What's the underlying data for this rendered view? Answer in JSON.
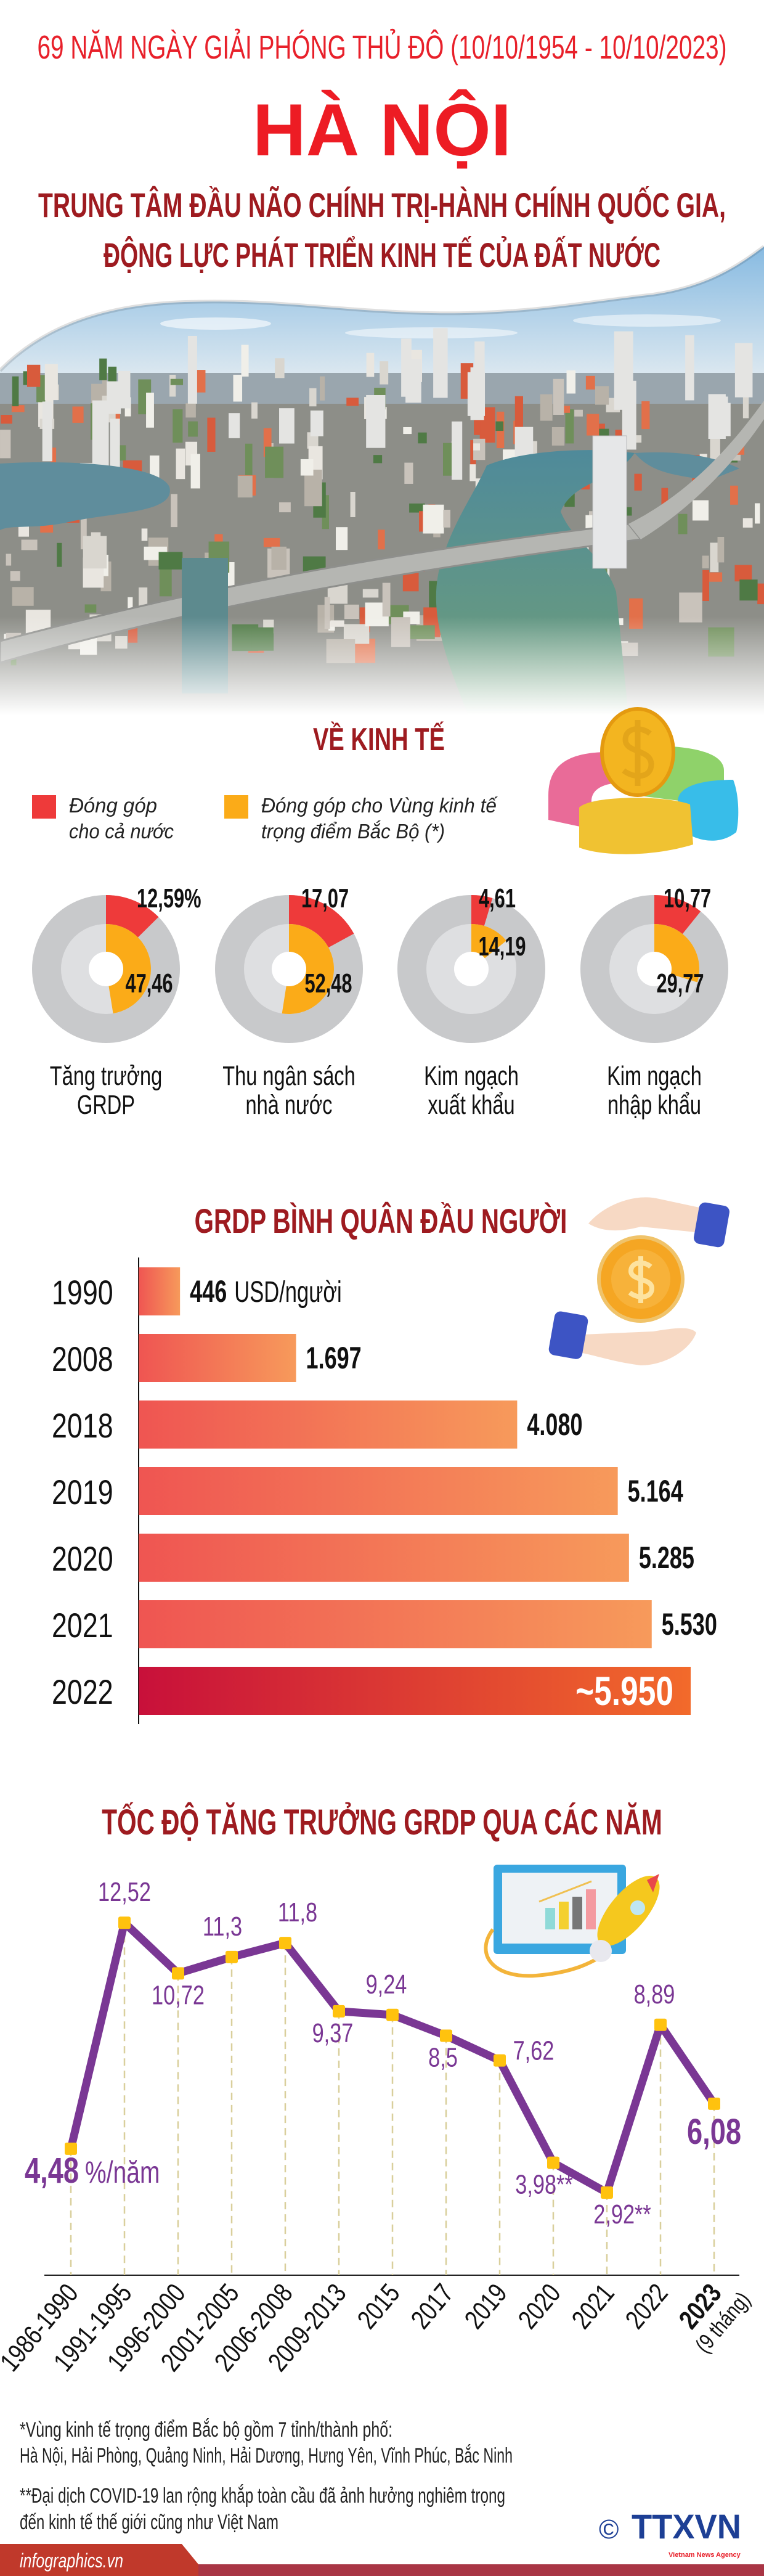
{
  "header": {
    "kicker": "69 NĂM NGÀY GIẢI PHÓNG THỦ ĐÔ (10/10/1954 - 10/10/2023)",
    "title": "HÀ NỘI",
    "subtitle_line1": "TRUNG TÂM ĐẦU NÃO CHÍNH TRỊ-HÀNH CHÍNH QUỐC GIA,",
    "subtitle_line2": "ĐỘNG LỰC PHÁT TRIỂN KINH TẾ CỦA ĐẤT NƯỚC"
  },
  "economy": {
    "title": "VỀ KINH TẾ",
    "legend": [
      {
        "line1": "Đóng góp",
        "line2": "cho cả nước",
        "color": "#ee3a3a"
      },
      {
        "line1": "Đóng góp cho Vùng kinh tế",
        "line2": "trọng điểm Bắc Bộ (*)",
        "color": "#fbab18"
      }
    ]
  },
  "chart_data": [
    {
      "type": "pie",
      "style": "nested-donut",
      "unit": "%",
      "categories": [
        {
          "line1": "Tăng trưởng",
          "line2": "GRDP"
        },
        {
          "line1": "Thu ngân sách",
          "line2": "nhà nước"
        },
        {
          "line1": "Kim ngạch",
          "line2": "xuất khẩu"
        },
        {
          "line1": "Kim ngạch",
          "line2": "nhập khẩu"
        }
      ],
      "series": [
        {
          "name": "Đóng góp cho cả nước",
          "values": [
            12.59,
            17.07,
            4.61,
            10.77
          ],
          "labels": [
            "12,59%",
            "17,07",
            "4,61",
            "10,77"
          ],
          "color": "#ee3a3a"
        },
        {
          "name": "Đóng góp cho Vùng kinh tế trọng điểm Bắc Bộ (*)",
          "values": [
            47.46,
            52.48,
            14.19,
            29.77
          ],
          "labels": [
            "47,46",
            "52,48",
            "14,19",
            "29,77"
          ],
          "color": "#fbab18"
        }
      ],
      "track_colors": {
        "outer": "#c8c9cb",
        "inner": "#dedfe1"
      }
    },
    {
      "type": "bar",
      "orientation": "horizontal",
      "title": "GRDP BÌNH QUÂN ĐẦU NGƯỜI",
      "unit_label": "USD/người",
      "categories": [
        "1990",
        "2008",
        "2018",
        "2019",
        "2020",
        "2021",
        "2022"
      ],
      "values": [
        446,
        1697,
        4080,
        5164,
        5285,
        5530,
        5950
      ],
      "value_labels": [
        "446",
        "1.697",
        "4.080",
        "5.164",
        "5.285",
        "5.530",
        "~5.950"
      ],
      "colors": {
        "bar_start": "#ef5552",
        "bar_end": "#f79a5b",
        "highlight_start": "#c8103a",
        "highlight_end": "#f26a2b"
      }
    },
    {
      "type": "line",
      "title": "TỐC ĐỘ TĂNG TRƯỞNG GRDP QUA CÁC NĂM",
      "unit_label": "%/năm",
      "x": [
        "1986-1990",
        "1991-1995",
        "1996-2000",
        "2001-2005",
        "2006-2008",
        "2009-2013",
        "2015",
        "2017",
        "2019",
        "2020",
        "2021",
        "2022",
        "2023"
      ],
      "x_note_last": "(9 tháng)",
      "values": [
        4.48,
        12.52,
        10.72,
        11.3,
        11.8,
        9.37,
        9.24,
        8.5,
        7.62,
        3.98,
        2.92,
        8.89,
        6.08
      ],
      "value_labels": [
        "4,48",
        "12,52",
        "10,72",
        "11,3",
        "11,8",
        "9,37",
        "9,24",
        "8,5",
        "7,62",
        "3,98**",
        "2,92**",
        "8,89",
        "6,08"
      ],
      "colors": {
        "line": "#7a3794",
        "marker": "#ffc20e",
        "label": "#7a3794",
        "guide": "#d9cf9c"
      }
    }
  ],
  "footnotes": {
    "note1_line1": "*Vùng kinh tế trọng điểm Bắc bộ gồm 7 tỉnh/thành phố:",
    "note1_line2": "Hà Nội, Hải Phòng, Quảng Ninh, Hải Dương, Hưng Yên, Vĩnh Phúc, Bắc Ninh",
    "note2_line1": "**Đại dịch COVID-19 lan rộng khắp toàn cầu đã ảnh hưởng nghiêm trọng",
    "note2_line2": "đến kinh tế thế giới cũng như Việt Nam"
  },
  "footer": {
    "site": "infographics.vn",
    "copyright": "©",
    "logo_text": "TTXVN",
    "logo_subtext": "Vietnam News Agency"
  }
}
